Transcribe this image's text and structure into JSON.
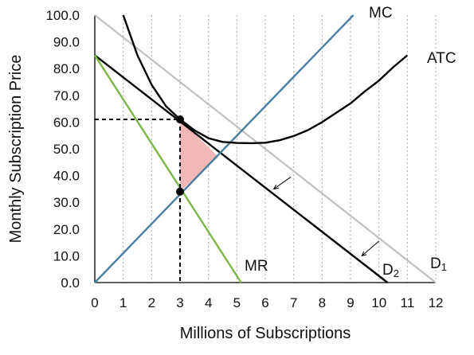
{
  "chart_data": {
    "type": "line",
    "title": "",
    "xlabel": "Millions of Subscriptions",
    "ylabel": "Monthly Subscription Price",
    "xlim": [
      0,
      12
    ],
    "ylim": [
      0,
      100
    ],
    "x_ticks": [
      "0",
      "1",
      "2",
      "3",
      "4",
      "5",
      "6",
      "7",
      "8",
      "9",
      "10",
      "11",
      "12"
    ],
    "y_ticks": [
      "0.0",
      "10.0",
      "20.0",
      "30.0",
      "40.0",
      "50.0",
      "60.0",
      "70.0",
      "80.0",
      "90.0",
      "100.0"
    ],
    "grid": "vertical dotted",
    "series": [
      {
        "name": "D1",
        "label_main": "D",
        "label_sub": "1",
        "color": "#c0c0c0",
        "points": [
          [
            0,
            100
          ],
          [
            12,
            0
          ]
        ]
      },
      {
        "name": "D2",
        "label_main": "D",
        "label_sub": "2",
        "color": "#000000",
        "points": [
          [
            0,
            85
          ],
          [
            10.3,
            0
          ]
        ]
      },
      {
        "name": "MR",
        "label_main": "MR",
        "label_sub": "",
        "color": "#7ab648",
        "points": [
          [
            0,
            85
          ],
          [
            5.15,
            0
          ]
        ]
      },
      {
        "name": "MC",
        "label_main": "MC",
        "label_sub": "",
        "color": "#4a7fa0",
        "points": [
          [
            0,
            0
          ],
          [
            9.1,
            100
          ]
        ]
      },
      {
        "name": "ATC",
        "label_main": "ATC",
        "label_sub": "",
        "color": "#000000",
        "points": [
          [
            1.0,
            100
          ],
          [
            1.5,
            85
          ],
          [
            2.0,
            74
          ],
          [
            2.5,
            66
          ],
          [
            3.0,
            61
          ],
          [
            3.5,
            57
          ],
          [
            4.0,
            54
          ],
          [
            4.5,
            52.6
          ],
          [
            5.0,
            52.2
          ],
          [
            5.5,
            52.1
          ],
          [
            6.0,
            52.3
          ],
          [
            6.5,
            53.2
          ],
          [
            7.0,
            54.8
          ],
          [
            7.5,
            57
          ],
          [
            8.0,
            60
          ],
          [
            8.5,
            63.5
          ],
          [
            9.0,
            67
          ],
          [
            9.5,
            71.5
          ],
          [
            10.0,
            75.5
          ],
          [
            10.5,
            80.5
          ],
          [
            11.0,
            85
          ]
        ]
      }
    ],
    "annotations": {
      "equilibrium_quantity": 3,
      "equilibrium_price": 61,
      "mr_mc_price": 34,
      "shaded_region_color": "#f2b8b8",
      "shaded_region": [
        [
          3,
          61
        ],
        [
          3,
          34
        ],
        [
          4.35,
          47
        ]
      ],
      "shift_arrows": [
        {
          "from": [
            6.9,
            39.5
          ],
          "to": [
            6.3,
            35
          ]
        },
        {
          "from": [
            10.0,
            15.5
          ],
          "to": [
            9.4,
            10
          ]
        }
      ]
    }
  }
}
